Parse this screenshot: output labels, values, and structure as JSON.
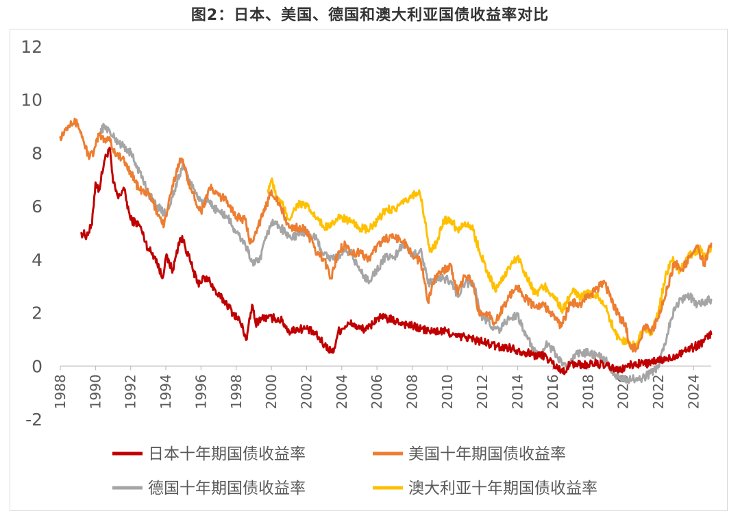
{
  "title": "图2：日本、美国、德国和澳大利亚国债收益率对比",
  "chart_data": {
    "type": "line",
    "title": "图2：日本、美国、德国和澳大利亚国债收益率对比",
    "xlabel": "",
    "ylabel": "",
    "xlim": [
      1988,
      2025
    ],
    "ylim": [
      -2,
      12
    ],
    "y_ticks": [
      "12",
      "10",
      "8",
      "6",
      "4",
      "2",
      "0",
      "-2"
    ],
    "x_ticks": [
      "1988",
      "1990",
      "1992",
      "1994",
      "1996",
      "1998",
      "2000",
      "2002",
      "2004",
      "2006",
      "2008",
      "2010",
      "2012",
      "2014",
      "2016",
      "2018",
      "2020",
      "2022",
      "2024"
    ],
    "grid": false,
    "legend_position": "bottom",
    "series": [
      {
        "name": "日本十年期国债收益率",
        "color": "#C00000",
        "x": [
          1989.2,
          1989.5,
          1989.8,
          1990.0,
          1990.2,
          1990.5,
          1990.8,
          1991.0,
          1991.3,
          1991.6,
          1992.0,
          1992.5,
          1993.0,
          1993.4,
          1993.8,
          1994.0,
          1994.4,
          1994.8,
          1995.0,
          1995.4,
          1995.8,
          1996.2,
          1996.5,
          1996.9,
          1997.4,
          1997.8,
          1998.2,
          1998.6,
          1998.9,
          1999.1,
          1999.4,
          1999.8,
          2000.2,
          2000.6,
          2001.0,
          2001.5,
          2002.0,
          2002.5,
          2003.0,
          2003.5,
          2003.8,
          2004.2,
          2004.6,
          2005.0,
          2005.5,
          2006.0,
          2006.5,
          2007.0,
          2007.5,
          2008.0,
          2008.5,
          2009.0,
          2009.5,
          2010.0,
          2010.5,
          2011.0,
          2011.5,
          2012.0,
          2012.5,
          2013.0,
          2013.5,
          2014.0,
          2014.5,
          2015.0,
          2015.5,
          2016.0,
          2016.5,
          2016.8,
          2017.0,
          2017.5,
          2018.0,
          2018.5,
          2019.0,
          2019.5,
          2019.8,
          2020.2,
          2020.6,
          2021.0,
          2021.5,
          2022.0,
          2022.5,
          2023.0,
          2023.5,
          2024.0,
          2024.5,
          2025.0
        ],
        "values": [
          5.0,
          4.9,
          5.3,
          6.9,
          6.6,
          7.7,
          8.2,
          6.9,
          6.3,
          6.7,
          5.5,
          5.3,
          4.4,
          4.1,
          3.3,
          4.1,
          3.6,
          4.8,
          4.7,
          3.9,
          3.1,
          3.3,
          3.2,
          2.7,
          2.4,
          2.0,
          1.7,
          1.0,
          2.3,
          1.6,
          1.8,
          1.8,
          1.8,
          1.7,
          1.3,
          1.4,
          1.4,
          1.2,
          0.8,
          0.5,
          1.3,
          1.5,
          1.6,
          1.4,
          1.4,
          1.8,
          1.8,
          1.7,
          1.6,
          1.5,
          1.4,
          1.3,
          1.3,
          1.3,
          1.1,
          1.1,
          1.0,
          0.9,
          0.8,
          0.7,
          0.7,
          0.6,
          0.5,
          0.4,
          0.4,
          0.1,
          -0.2,
          -0.1,
          0.1,
          0.05,
          0.05,
          0.1,
          0.0,
          -0.1,
          -0.2,
          0.0,
          0.05,
          0.1,
          0.1,
          0.2,
          0.25,
          0.4,
          0.6,
          0.7,
          0.9,
          1.2
        ]
      },
      {
        "name": "美国十年期国债收益率",
        "color": "#ED7D31",
        "x": [
          1988.0,
          1988.3,
          1988.6,
          1989.0,
          1989.3,
          1989.6,
          1989.9,
          1990.2,
          1990.5,
          1990.8,
          1991.0,
          1991.5,
          1992.0,
          1992.5,
          1993.0,
          1993.5,
          1993.9,
          1994.3,
          1994.8,
          1995.0,
          1995.5,
          1996.0,
          1996.5,
          1997.0,
          1997.5,
          1998.0,
          1998.5,
          1998.8,
          1999.2,
          1999.6,
          2000.0,
          2000.5,
          2001.0,
          2001.5,
          2002.0,
          2002.5,
          2003.0,
          2003.4,
          2003.8,
          2004.2,
          2004.6,
          2005.0,
          2005.5,
          2006.0,
          2006.5,
          2007.0,
          2007.5,
          2008.0,
          2008.5,
          2008.9,
          2009.3,
          2009.8,
          2010.2,
          2010.6,
          2011.0,
          2011.4,
          2011.8,
          2012.3,
          2012.7,
          2013.0,
          2013.5,
          2014.0,
          2014.5,
          2015.0,
          2015.5,
          2016.0,
          2016.5,
          2017.0,
          2017.5,
          2018.0,
          2018.5,
          2018.9,
          2019.3,
          2019.8,
          2020.1,
          2020.4,
          2020.8,
          2021.2,
          2021.6,
          2022.0,
          2022.5,
          2022.9,
          2023.3,
          2023.8,
          2024.2,
          2024.6,
          2025.0
        ],
        "values": [
          8.6,
          8.9,
          9.2,
          9.1,
          8.5,
          7.9,
          8.0,
          8.7,
          8.5,
          8.6,
          8.1,
          7.8,
          7.3,
          6.6,
          6.5,
          5.8,
          5.3,
          6.5,
          7.8,
          7.6,
          6.5,
          5.8,
          6.7,
          6.4,
          6.2,
          5.6,
          5.5,
          4.6,
          5.2,
          5.8,
          6.6,
          6.0,
          5.2,
          5.2,
          5.1,
          4.3,
          4.0,
          3.3,
          4.3,
          4.6,
          4.2,
          4.3,
          4.0,
          4.5,
          4.8,
          4.8,
          4.7,
          4.2,
          3.9,
          2.4,
          3.4,
          3.6,
          3.8,
          2.7,
          3.4,
          3.2,
          2.0,
          2.0,
          1.6,
          2.0,
          2.6,
          3.0,
          2.5,
          2.2,
          2.3,
          1.9,
          1.5,
          2.4,
          2.3,
          2.6,
          2.9,
          3.2,
          2.5,
          1.8,
          1.6,
          0.7,
          0.7,
          1.5,
          1.3,
          1.8,
          2.9,
          3.9,
          3.6,
          4.1,
          4.5,
          3.8,
          4.6
        ]
      },
      {
        "name": "德国十年期国债收益率",
        "color": "#A5A5A5",
        "x": [
          1990.3,
          1990.6,
          1991.0,
          1991.5,
          1992.0,
          1992.5,
          1993.0,
          1993.5,
          1994.0,
          1994.5,
          1995.0,
          1995.5,
          1996.0,
          1996.5,
          1997.0,
          1997.5,
          1998.0,
          1998.5,
          1998.9,
          1999.3,
          1999.7,
          2000.0,
          2000.4,
          2000.8,
          2001.2,
          2001.6,
          2002.0,
          2002.5,
          2003.0,
          2003.5,
          2004.0,
          2004.5,
          2005.0,
          2005.5,
          2006.0,
          2006.5,
          2007.0,
          2007.5,
          2008.0,
          2008.5,
          2008.9,
          2009.3,
          2009.8,
          2010.2,
          2010.6,
          2011.0,
          2011.5,
          2011.9,
          2012.3,
          2012.7,
          2013.0,
          2013.5,
          2014.0,
          2014.5,
          2015.0,
          2015.3,
          2015.6,
          2016.0,
          2016.5,
          2016.8,
          2017.2,
          2017.6,
          2018.0,
          2018.5,
          2019.0,
          2019.5,
          2019.8,
          2020.2,
          2020.6,
          2021.0,
          2021.5,
          2022.0,
          2022.5,
          2022.9,
          2023.3,
          2023.8,
          2024.2,
          2024.6,
          2025.0
        ],
        "values": [
          8.9,
          9.0,
          8.6,
          8.3,
          8.0,
          7.3,
          6.5,
          6.0,
          5.7,
          6.6,
          7.6,
          6.7,
          6.2,
          6.1,
          5.8,
          5.6,
          5.0,
          4.6,
          3.9,
          3.9,
          4.8,
          5.4,
          5.3,
          5.0,
          4.8,
          5.0,
          5.0,
          4.8,
          4.2,
          4.0,
          4.2,
          4.3,
          3.6,
          3.2,
          3.6,
          4.1,
          4.1,
          4.6,
          4.1,
          4.4,
          3.1,
          3.2,
          3.3,
          3.2,
          2.6,
          3.1,
          3.1,
          1.9,
          1.7,
          1.4,
          1.4,
          1.8,
          1.9,
          1.1,
          0.5,
          0.3,
          0.8,
          0.6,
          0.1,
          -0.1,
          0.4,
          0.5,
          0.5,
          0.4,
          0.2,
          -0.3,
          -0.4,
          -0.5,
          -0.5,
          -0.5,
          -0.3,
          0.0,
          1.2,
          2.2,
          2.5,
          2.6,
          2.3,
          2.4,
          2.5
        ]
      },
      {
        "name": "澳大利亚十年期国债收益率",
        "color": "#FFC000",
        "x": [
          1999.8,
          2000.0,
          2000.3,
          2000.6,
          2001.0,
          2001.5,
          2002.0,
          2002.5,
          2003.0,
          2003.5,
          2004.0,
          2004.5,
          2005.0,
          2005.5,
          2006.0,
          2006.5,
          2007.0,
          2007.5,
          2008.0,
          2008.4,
          2008.7,
          2009.0,
          2009.4,
          2009.8,
          2010.2,
          2010.6,
          2011.0,
          2011.4,
          2011.8,
          2012.3,
          2012.7,
          2013.0,
          2013.5,
          2014.0,
          2014.5,
          2015.0,
          2015.5,
          2016.0,
          2016.5,
          2016.8,
          2017.2,
          2017.6,
          2018.0,
          2018.5,
          2019.0,
          2019.5,
          2019.8,
          2020.2,
          2020.5,
          2020.8,
          2021.2,
          2021.6,
          2022.0,
          2022.4,
          2022.8,
          2023.2,
          2023.6,
          2024.0,
          2024.4,
          2024.7,
          2025.0
        ],
        "values": [
          6.6,
          7.0,
          6.3,
          6.1,
          5.5,
          6.1,
          6.0,
          5.6,
          5.2,
          5.4,
          5.6,
          5.4,
          5.2,
          5.1,
          5.4,
          5.9,
          5.9,
          6.1,
          6.4,
          6.6,
          5.6,
          4.3,
          4.6,
          5.5,
          5.5,
          5.1,
          5.4,
          5.2,
          4.4,
          3.5,
          2.9,
          3.1,
          3.7,
          4.1,
          3.4,
          2.7,
          3.0,
          2.7,
          2.1,
          2.4,
          2.8,
          2.6,
          2.7,
          2.7,
          2.2,
          1.3,
          1.0,
          0.9,
          0.8,
          0.9,
          1.5,
          1.2,
          2.0,
          3.4,
          4.0,
          3.6,
          4.0,
          4.3,
          4.4,
          4.0,
          4.5
        ]
      }
    ]
  }
}
